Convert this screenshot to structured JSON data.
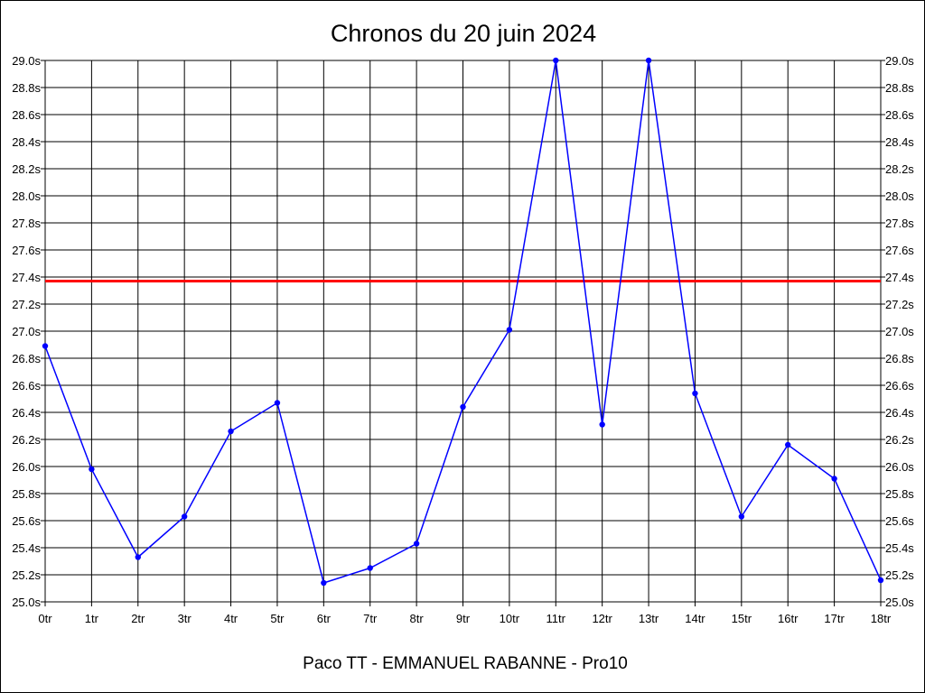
{
  "chart_data": {
    "type": "line",
    "title": "Chronos du 20 juin 2024",
    "footer": "Paco TT - EMMANUEL RABANNE - Pro10",
    "categories": [
      "0tr",
      "1tr",
      "2tr",
      "3tr",
      "4tr",
      "5tr",
      "6tr",
      "7tr",
      "8tr",
      "9tr",
      "10tr",
      "11tr",
      "12tr",
      "13tr",
      "14tr",
      "15tr",
      "16tr",
      "17tr",
      "18tr"
    ],
    "y_tick_labels": [
      "25.0s",
      "25.2s",
      "25.4s",
      "25.6s",
      "25.8s",
      "26.0s",
      "26.2s",
      "26.4s",
      "26.6s",
      "26.8s",
      "27.0s",
      "27.2s",
      "27.4s",
      "27.6s",
      "27.8s",
      "28.0s",
      "28.2s",
      "28.4s",
      "28.6s",
      "28.8s",
      "29.0s"
    ],
    "ylim": [
      25.0,
      29.0
    ],
    "y_tick_step": 0.2,
    "grid": true,
    "series": [
      {
        "color": "#0000ff",
        "values": [
          26.89,
          25.98,
          25.33,
          25.63,
          26.26,
          26.47,
          25.14,
          25.25,
          25.43,
          26.44,
          27.01,
          29.0,
          26.31,
          29.0,
          26.54,
          25.63,
          26.16,
          25.91,
          25.16
        ]
      }
    ],
    "reference_line": {
      "value": 27.37,
      "color": "#ff0000"
    }
  }
}
